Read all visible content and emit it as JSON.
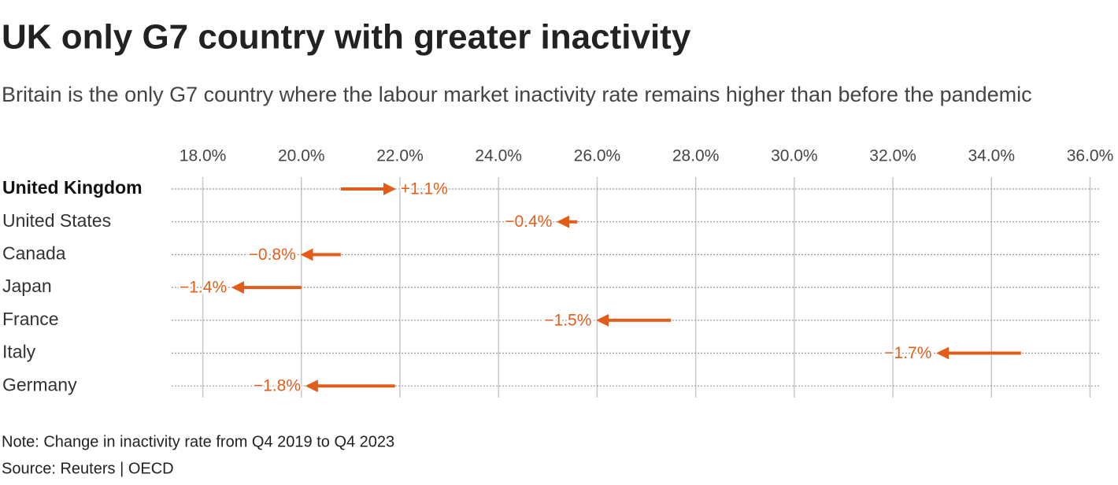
{
  "chart_data": {
    "type": "arrow",
    "title": "UK only G7 country with greater inactivity",
    "subtitle": "Britain is the only G7 country where the labour market inactivity rate remains higher than before the pandemic",
    "note": "Note: Change in inactivity rate from Q4 2019 to Q4 2023",
    "source": "Source: Reuters | OECD",
    "categories": [
      "United Kingdom",
      "United States",
      "Canada",
      "Japan",
      "France",
      "Italy",
      "Germany"
    ],
    "highlight": "United Kingdom",
    "start": [
      20.8,
      25.6,
      20.8,
      20.0,
      27.5,
      34.6,
      21.9
    ],
    "end": [
      21.9,
      25.2,
      20.0,
      18.6,
      26.0,
      32.9,
      20.1
    ],
    "values": [
      1.1,
      -0.4,
      -0.8,
      -1.4,
      -1.5,
      -1.7,
      -1.8
    ],
    "value_labels": [
      "+1.1%",
      "−0.4%",
      "−0.8%",
      "−1.4%",
      "−1.5%",
      "−1.7%",
      "−1.8%"
    ],
    "color": "#e35d1a",
    "xlim": [
      17.4,
      36.2
    ],
    "xticks": [
      {
        "value": 18,
        "label": "18.0%"
      },
      {
        "value": 20,
        "label": "20.0%"
      },
      {
        "value": 22,
        "label": "22.0%"
      },
      {
        "value": 24,
        "label": "24.0%"
      },
      {
        "value": 26,
        "label": "26.0%"
      },
      {
        "value": 28,
        "label": "28.0%"
      },
      {
        "value": 30,
        "label": "30.0%"
      },
      {
        "value": 32,
        "label": "32.0%"
      },
      {
        "value": 34,
        "label": "34.0%"
      },
      {
        "value": 36,
        "label": "36.0%"
      }
    ],
    "grid": true
  }
}
